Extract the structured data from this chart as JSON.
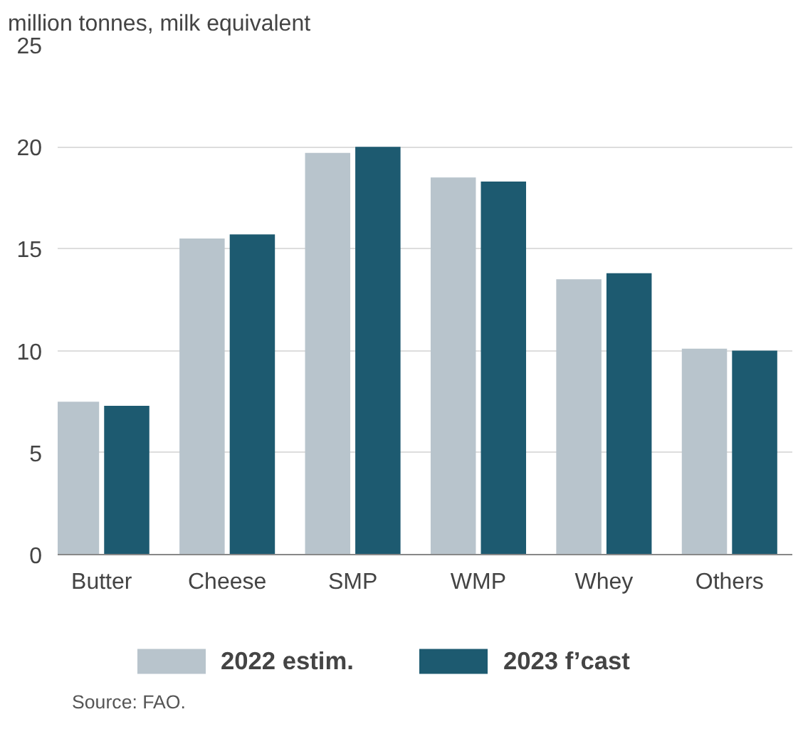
{
  "chart_data": {
    "type": "bar",
    "ylabel": "million tonnes, milk equivalent",
    "categories": [
      "Butter",
      "Cheese",
      "SMP",
      "WMP",
      "Whey",
      "Others"
    ],
    "series": [
      {
        "name": "2022 estim.",
        "color": "#b8c4cc",
        "values": [
          7.5,
          15.5,
          19.7,
          18.5,
          13.5,
          10.1
        ]
      },
      {
        "name": "2023 f’cast",
        "color": "#1d5a70",
        "values": [
          7.3,
          15.7,
          20.0,
          18.3,
          13.8,
          10.0
        ]
      }
    ],
    "ylim": [
      0,
      25
    ],
    "yticks": [
      0,
      5,
      10,
      15,
      20,
      25
    ],
    "grid": "y",
    "legend": "bottom",
    "annotations": [
      "Source: FAO."
    ]
  }
}
